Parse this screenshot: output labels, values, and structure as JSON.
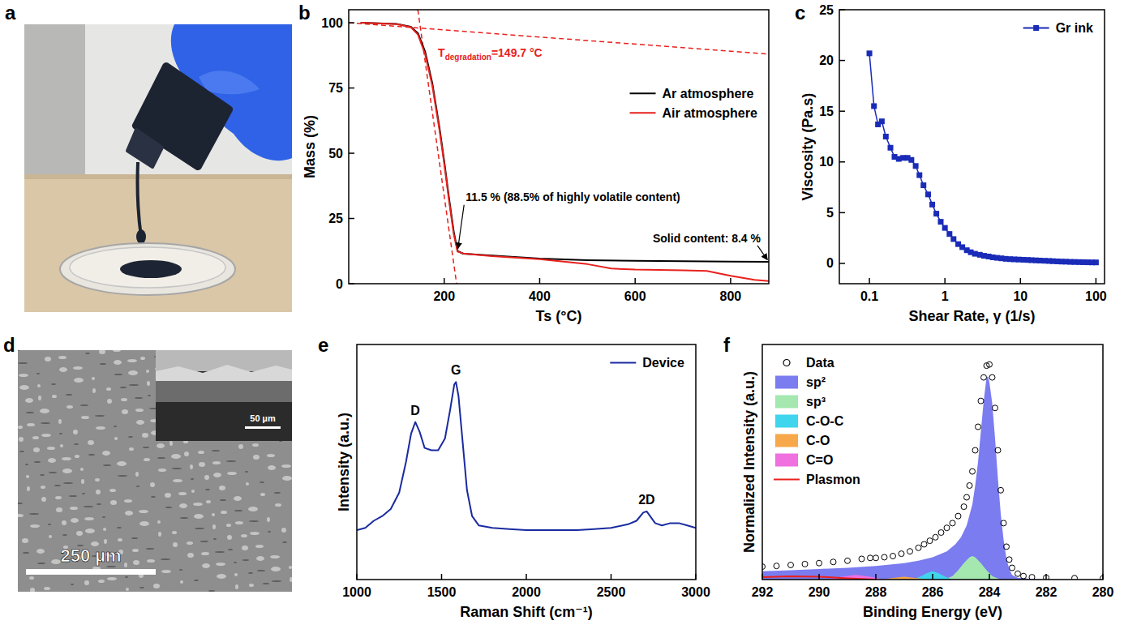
{
  "chart_data": [
    {
      "panel": "b",
      "type": "line",
      "x_label": "Ts (°C)",
      "y_label": "Mass (%)",
      "xlim": [
        0,
        880
      ],
      "ylim": [
        0,
        105
      ],
      "xticks": [
        200,
        400,
        600,
        800
      ],
      "yticks": [
        0,
        25,
        50,
        75,
        100
      ],
      "legend": "right",
      "series": [
        {
          "name": "Ar atmosphere",
          "color": "#000000",
          "x": [
            25,
            100,
            130,
            145,
            160,
            175,
            190,
            200,
            210,
            220,
            228,
            240,
            300,
            400,
            500,
            600,
            700,
            800,
            880
          ],
          "values": [
            100,
            99.6,
            98.5,
            96,
            89,
            77,
            60,
            47,
            33,
            20,
            12.5,
            11.5,
            10.8,
            9.6,
            9,
            8.8,
            8.6,
            8.5,
            8.4
          ]
        },
        {
          "name": "Air atmosphere",
          "color": "#e8211d",
          "x": [
            25,
            100,
            130,
            145,
            160,
            175,
            190,
            200,
            210,
            220,
            228,
            240,
            300,
            400,
            450,
            500,
            550,
            600,
            700,
            750,
            800,
            850,
            880
          ],
          "values": [
            100,
            99.5,
            98.3,
            95.5,
            88,
            76,
            59,
            46,
            32,
            19,
            12.3,
            11.6,
            10.6,
            9.4,
            8.5,
            7.5,
            5.8,
            5.4,
            5.1,
            4.9,
            3,
            1.5,
            1
          ]
        }
      ],
      "tangents": [
        {
          "color": "#e8211d",
          "line_style": "dashed",
          "x": [
            0,
            880
          ],
          "values": [
            100,
            88
          ]
        },
        {
          "color": "#e8211d",
          "line_style": "dashed",
          "x": [
            144.8,
            226
          ],
          "values": [
            105,
            0
          ]
        }
      ],
      "onset": {
        "text": "T",
        "subscript": "degradation",
        "suffix": "=149.7 °C",
        "x": 149.7,
        "y": 98
      },
      "annotations": [
        {
          "text": "11.5 % (88.5% of highly volatile content)",
          "x": 228,
          "y": 12.5
        },
        {
          "text": "Solid content: 8.4 %",
          "x": 880,
          "y": 8.4
        }
      ]
    },
    {
      "panel": "c",
      "type": "line",
      "marker": "square",
      "log": "x",
      "x_label": "Shear Rate, γ (1/s)",
      "y_label": "Viscosity (Pa.s)",
      "xlim": [
        0.04,
        130
      ],
      "ylim": [
        -2,
        25
      ],
      "xticks": [
        0.1,
        1,
        10,
        100
      ],
      "yticks": [
        0,
        5,
        10,
        15,
        20,
        25
      ],
      "legend": "upper right",
      "series": [
        {
          "name": "Gr ink",
          "color": "#1a2bb8",
          "x": [
            0.1,
            0.115,
            0.13,
            0.146,
            0.165,
            0.19,
            0.215,
            0.245,
            0.28,
            0.32,
            0.36,
            0.41,
            0.46,
            0.52,
            0.6,
            0.68,
            0.77,
            0.88,
            1,
            1.15,
            1.3,
            1.5,
            1.7,
            1.95,
            2.2,
            2.5,
            2.9,
            3.3,
            3.8,
            4.3,
            4.9,
            5.6,
            6.4,
            7.3,
            8.3,
            9.5,
            11,
            12.5,
            14,
            16,
            18,
            21,
            24,
            27,
            31,
            35,
            40,
            46,
            52,
            60,
            68,
            78,
            89,
            100
          ],
          "values": [
            20.7,
            15.5,
            13.7,
            14.0,
            12.5,
            11.4,
            10.5,
            10.3,
            10.4,
            10.4,
            10.2,
            9.6,
            8.7,
            7.7,
            6.8,
            5.8,
            4.9,
            4.1,
            3.5,
            2.9,
            2.4,
            1.9,
            1.6,
            1.3,
            1.1,
            0.95,
            0.85,
            0.75,
            0.68,
            0.6,
            0.55,
            0.5,
            0.45,
            0.42,
            0.4,
            0.38,
            0.36,
            0.34,
            0.32,
            0.3,
            0.28,
            0.26,
            0.24,
            0.22,
            0.2,
            0.18,
            0.17,
            0.15,
            0.14,
            0.13,
            0.12,
            0.11,
            0.1,
            0.1
          ]
        }
      ]
    },
    {
      "panel": "e",
      "type": "line",
      "x_label": "Raman Shift (cm⁻¹)",
      "y_label": "Intensity (a.u.)",
      "xlim": [
        1000,
        3000
      ],
      "ylim": [
        0,
        100
      ],
      "xticks": [
        1000,
        1500,
        2000,
        2500,
        3000
      ],
      "tick_labels": "x",
      "legend": "upper right",
      "series": [
        {
          "name": "Device",
          "color": "#1a2ba0",
          "x": [
            1000,
            1050,
            1100,
            1150,
            1200,
            1250,
            1290,
            1320,
            1345,
            1370,
            1400,
            1440,
            1480,
            1520,
            1550,
            1575,
            1585,
            1600,
            1620,
            1650,
            1680,
            1720,
            1800,
            1900,
            2000,
            2100,
            2200,
            2300,
            2400,
            2500,
            2600,
            2650,
            2690,
            2710,
            2730,
            2760,
            2800,
            2850,
            2900,
            2950,
            3000
          ],
          "values": [
            21,
            22,
            25,
            27,
            30,
            37,
            50,
            62,
            67,
            63,
            56,
            55,
            55,
            60,
            72,
            83,
            84,
            78,
            62,
            38,
            27,
            23,
            22,
            21.5,
            21,
            21,
            21,
            21,
            21.5,
            22,
            23.5,
            25,
            28.5,
            29,
            27,
            24,
            23,
            24,
            24,
            23,
            22
          ]
        }
      ],
      "annotations": [
        {
          "text": "D",
          "x": 1345,
          "y": 67
        },
        {
          "text": "G",
          "x": 1585,
          "y": 84
        },
        {
          "text": "2D",
          "x": 2710,
          "y": 29
        }
      ]
    },
    {
      "panel": "f",
      "type": "area",
      "x_label": "Binding Energy (eV)",
      "y_label": "Normalized Intensity (a.u.)",
      "xlim": [
        292,
        280
      ],
      "ylim": [
        0,
        1
      ],
      "xticks": [
        292,
        290,
        288,
        286,
        284,
        282,
        280
      ],
      "tick_labels": "x",
      "legend": "upper left",
      "series": [
        {
          "name": "Data",
          "type": "scatter",
          "marker": "circle",
          "color": "#000000",
          "x": [
            292,
            291.5,
            291,
            290.5,
            290,
            289.5,
            289,
            288.5,
            288.2,
            288,
            287.7,
            287.4,
            287.1,
            286.8,
            286.5,
            286.3,
            286.1,
            285.9,
            285.7,
            285.5,
            285.3,
            285.1,
            284.9,
            284.8,
            284.7,
            284.6,
            284.5,
            284.4,
            284.3,
            284.2,
            284.1,
            284,
            283.9,
            283.8,
            283.7,
            283.6,
            283.5,
            283.4,
            283.3,
            283.2,
            283,
            282.8,
            282.5,
            282,
            281,
            280
          ],
          "values": [
            0.055,
            0.058,
            0.062,
            0.066,
            0.07,
            0.075,
            0.08,
            0.088,
            0.092,
            0.092,
            0.095,
            0.1,
            0.11,
            0.12,
            0.135,
            0.15,
            0.165,
            0.18,
            0.2,
            0.22,
            0.24,
            0.27,
            0.31,
            0.35,
            0.4,
            0.46,
            0.55,
            0.65,
            0.76,
            0.86,
            0.91,
            0.915,
            0.86,
            0.73,
            0.55,
            0.38,
            0.24,
            0.14,
            0.085,
            0.05,
            0.025,
            0.015,
            0.01,
            0.008,
            0.006,
            0.005
          ]
        },
        {
          "name": "sp²",
          "type": "area",
          "color": "#7b7cf0",
          "x": [
            292,
            291,
            290,
            289,
            288,
            287,
            286.5,
            286,
            285.5,
            285.2,
            285,
            284.8,
            284.6,
            284.5,
            284.4,
            284.3,
            284.2,
            284.1,
            284.05,
            284,
            283.9,
            283.8,
            283.7,
            283.6,
            283.5,
            283.4,
            283.3,
            283.2,
            283,
            282.5,
            282,
            280
          ],
          "values": [
            0.035,
            0.04,
            0.045,
            0.05,
            0.058,
            0.07,
            0.08,
            0.095,
            0.12,
            0.15,
            0.18,
            0.23,
            0.32,
            0.4,
            0.5,
            0.63,
            0.76,
            0.86,
            0.865,
            0.84,
            0.75,
            0.6,
            0.43,
            0.28,
            0.17,
            0.09,
            0.045,
            0.02,
            0.008,
            0.002,
            0,
            0
          ]
        },
        {
          "name": "sp³",
          "type": "area",
          "color": "#a4e8b0",
          "x": [
            283.6,
            283.9,
            284.1,
            284.3,
            284.5,
            284.6,
            284.7,
            284.9,
            285.1,
            285.3,
            285.6
          ],
          "values": [
            0,
            0.015,
            0.04,
            0.07,
            0.095,
            0.1,
            0.095,
            0.07,
            0.04,
            0.015,
            0
          ]
        },
        {
          "name": "C-O-C",
          "type": "area",
          "color": "#3fd5ec",
          "x": [
            285.3,
            285.6,
            285.8,
            286,
            286.2,
            286.4,
            286.7
          ],
          "values": [
            0,
            0.015,
            0.028,
            0.035,
            0.028,
            0.015,
            0
          ]
        },
        {
          "name": "C-O",
          "type": "area",
          "color": "#f6a84a",
          "x": [
            286.2,
            286.6,
            287,
            287.4,
            287.8
          ],
          "values": [
            0,
            0.007,
            0.012,
            0.007,
            0
          ]
        },
        {
          "name": "C=O",
          "type": "area",
          "color": "#f070e0",
          "x": [
            287.7,
            288.2,
            288.7,
            289.2,
            289.7
          ],
          "values": [
            0,
            0.012,
            0.02,
            0.012,
            0
          ]
        },
        {
          "name": "Plasmon",
          "type": "line",
          "color": "#e8211d",
          "x": [
            288,
            289,
            290,
            291,
            292
          ],
          "values": [
            0,
            0.005,
            0.012,
            0.014,
            0.01
          ]
        }
      ]
    }
  ],
  "images": [
    {
      "panel": "a"
    },
    {
      "panel": "d",
      "scale_bar": "250 µm",
      "inset_scale_bar": "50 µm"
    }
  ]
}
